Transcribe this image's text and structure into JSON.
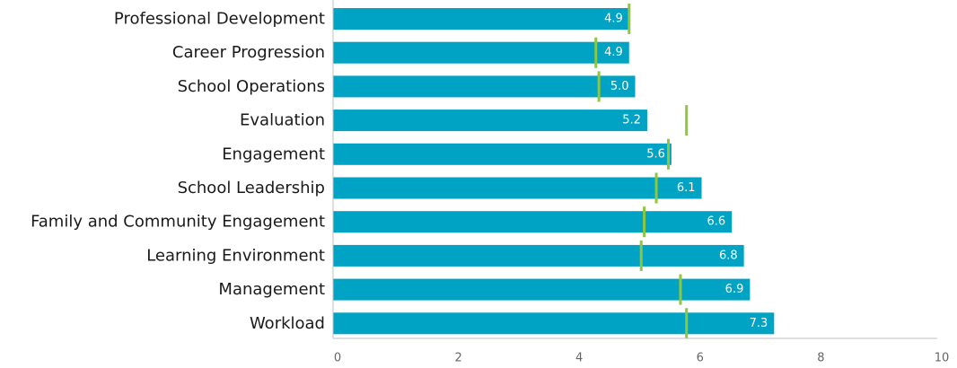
{
  "chart_data": {
    "type": "bar",
    "orientation": "horizontal",
    "categories": [
      "Professional Development",
      "Career Progression",
      "School Operations",
      "Evaluation",
      "Engagement",
      "School Leadership",
      "Family and Community Engagement",
      "Learning Environment",
      "Management",
      "Workload"
    ],
    "series": [
      {
        "values": [
          4.9,
          4.9,
          5.0,
          5.2,
          5.6,
          6.1,
          6.6,
          6.8,
          6.9,
          7.3
        ]
      },
      {
        "values": [
          4.9,
          4.35,
          4.4,
          5.85,
          5.55,
          5.35,
          5.15,
          5.1,
          5.75,
          5.85
        ]
      }
    ],
    "value_labels": [
      "4.9",
      "4.9",
      "5.0",
      "5.2",
      "5.6",
      "6.1",
      "6.6",
      "6.8",
      "6.9",
      "7.3"
    ],
    "xlim": [
      0,
      10
    ],
    "xticks": [
      "0",
      "2",
      "4",
      "6",
      "8",
      "10"
    ],
    "title": "",
    "xlabel": "",
    "ylabel": "",
    "grid": false,
    "legend": "none",
    "colors": {
      "bar": "#00a3c4",
      "marker": "#8dc63f",
      "axis": "#bfbfbf"
    }
  }
}
